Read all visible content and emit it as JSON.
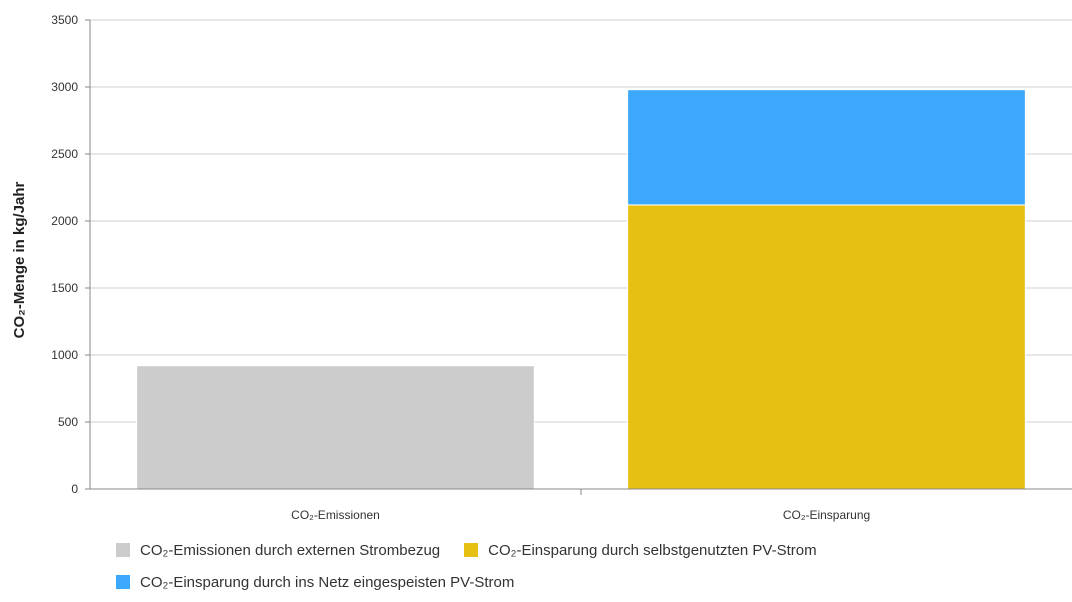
{
  "chart_data": {
    "type": "bar",
    "stacked": true,
    "ylabel": "CO₂-Menge in kg/Jahr",
    "ylim": [
      0,
      3500
    ],
    "yticks": [
      0,
      500,
      1000,
      1500,
      2000,
      2500,
      3000,
      3500
    ],
    "categories": [
      "CO₂-Emissionen",
      "CO₂-Einsparung"
    ],
    "grid": true,
    "legend_position": "bottom",
    "series": [
      {
        "name": "CO₂-Emissionen durch externen Strombezug",
        "color": "#cccccc",
        "values": [
          920,
          0
        ]
      },
      {
        "name": "CO₂-Einsparung durch selbstgenutzten PV-Strom",
        "color": "#e6c012",
        "values": [
          0,
          2120
        ]
      },
      {
        "name": "CO₂-Einsparung durch ins Netz eingespeisten PV-Strom",
        "color": "#3ba8fc",
        "values": [
          0,
          860
        ]
      }
    ]
  }
}
